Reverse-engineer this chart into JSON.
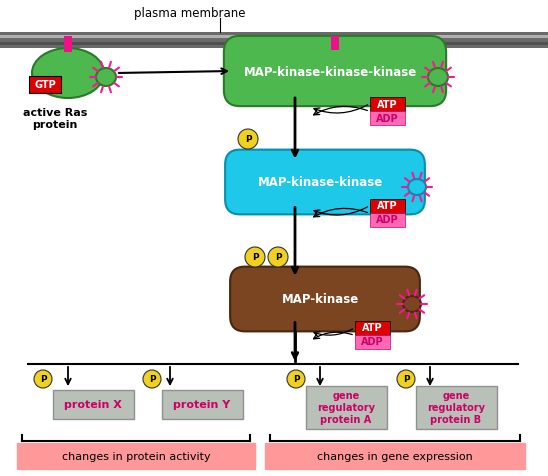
{
  "bg_color": "#ffffff",
  "green_color": "#4db84d",
  "cyan_color": "#1ec8e8",
  "brown_color": "#7a4520",
  "gtp_box_color": "#dd0000",
  "atp_box_color": "#dd0000",
  "adp_box_color": "#ff69b4",
  "yellow_color": "#f0d020",
  "pink_color": "#ff1493",
  "protein_box_color": "#b8c0b8",
  "bottom_box_color": "#ff9999",
  "text_white": "#ffffff",
  "text_magenta": "#cc0066",
  "text_black": "#000000",
  "mem_dark": "#6a6a6a",
  "mem_mid": "#909090",
  "mem_light": "#b0b0b0",
  "label_membrane": "plasma membrane",
  "label_ras": "active Ras\nprotein",
  "label_kkk": "MAP-kinase-kinase-kinase",
  "label_kk": "MAP-kinase-kinase",
  "label_k": "MAP-kinase",
  "label_atp": "ATP",
  "label_adp": "ADP",
  "label_p": "P",
  "label_px": "protein X",
  "label_py": "protein Y",
  "label_ga": "gene\nregulatory\nprotein A",
  "label_gb": "gene\nregulatory\nprotein B",
  "label_prot_act": "changes in protein activity",
  "label_gene_exp": "changes in gene expression"
}
